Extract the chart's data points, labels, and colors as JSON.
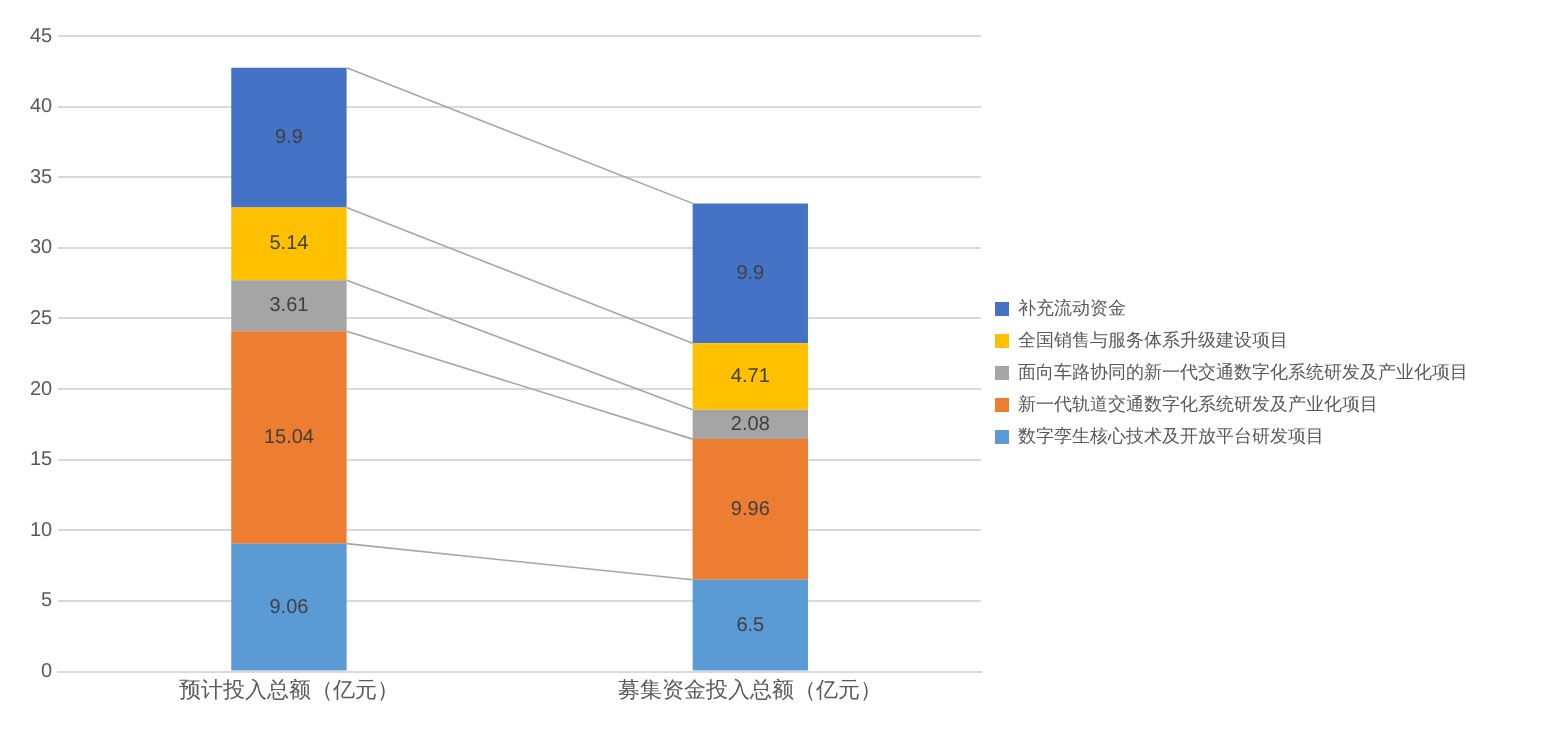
{
  "chart_data": {
    "type": "bar",
    "stacked": true,
    "categories": [
      "预计投入总额（亿元）",
      "募集资金投入总额（亿元）"
    ],
    "series": [
      {
        "name": "数字孪生核心技术及开放平台研发项目",
        "color": "#5b9bd5",
        "values": [
          9.06,
          6.5
        ]
      },
      {
        "name": "新一代轨道交通数字化系统研发及产业化项目",
        "color": "#ed7d31",
        "values": [
          15.04,
          9.96
        ]
      },
      {
        "name": "面向车路协同的新一代交通数字化系统研发及产业化项目",
        "color": "#a5a5a5",
        "values": [
          3.61,
          2.08
        ]
      },
      {
        "name": "全国销售与服务体系升级建设项目",
        "color": "#ffc000",
        "values": [
          5.14,
          4.71
        ]
      },
      {
        "name": "补充流动资金",
        "color": "#4472c4",
        "values": [
          9.9,
          9.9
        ]
      }
    ],
    "ylim": [
      0,
      45
    ],
    "yticks": [
      0,
      5,
      10,
      15,
      20,
      25,
      30,
      35,
      40,
      45
    ],
    "grid": "y",
    "legend": "right",
    "data_labels": true
  }
}
